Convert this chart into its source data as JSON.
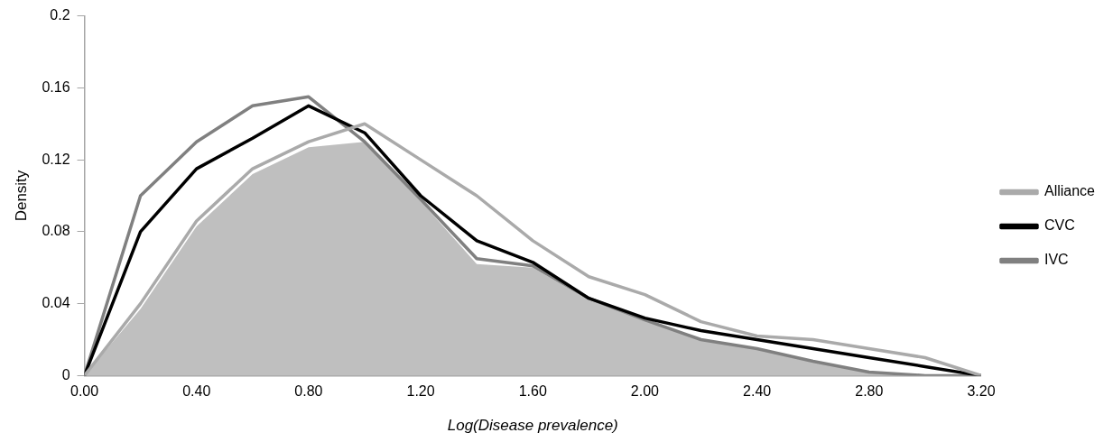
{
  "chart_data": {
    "type": "line",
    "xlabel": "Log(Disease prevalence)",
    "ylabel": "Density",
    "x": [
      0,
      0.2,
      0.4,
      0.6,
      0.8,
      1.0,
      1.2,
      1.4,
      1.6,
      1.8,
      2.0,
      2.2,
      2.4,
      2.6,
      2.8,
      3.0,
      3.2
    ],
    "series": [
      {
        "type": "area",
        "color": "#bfbfbf",
        "values": [
          0,
          0.037,
          0.083,
          0.112,
          0.127,
          0.13,
          0.097,
          0.062,
          0.06,
          0.042,
          0.031,
          0.02,
          0.015,
          0.008,
          0.002,
          0,
          0
        ]
      },
      {
        "name": "Alliance",
        "color": "#aaaaaa",
        "values": [
          0,
          0.04,
          0.086,
          0.115,
          0.13,
          0.14,
          0.12,
          0.1,
          0.075,
          0.055,
          0.045,
          0.03,
          0.022,
          0.02,
          0.015,
          0.01,
          0
        ]
      },
      {
        "name": "CVC",
        "color": "#000000",
        "values": [
          0,
          0.08,
          0.115,
          0.132,
          0.15,
          0.135,
          0.1,
          0.075,
          0.063,
          0.043,
          0.032,
          0.025,
          0.02,
          0.015,
          0.01,
          0.005,
          0
        ]
      },
      {
        "name": "IVC",
        "color": "#808080",
        "values": [
          0,
          0.1,
          0.13,
          0.15,
          0.155,
          0.13,
          0.098,
          0.065,
          0.061,
          0.043,
          0.031,
          0.02,
          0.015,
          0.008,
          0.002,
          0,
          0
        ]
      }
    ],
    "xlim": [
      0,
      3.2
    ],
    "ylim": [
      0,
      0.2
    ],
    "xticks": [
      {
        "value": 0,
        "label": "0.00"
      },
      {
        "value": 0.4,
        "label": "0.40"
      },
      {
        "value": 0.8,
        "label": "0.80"
      },
      {
        "value": 1.2,
        "label": "1.20"
      },
      {
        "value": 1.6,
        "label": "1.60"
      },
      {
        "value": 2.0,
        "label": "2.00"
      },
      {
        "value": 2.4,
        "label": "2.40"
      },
      {
        "value": 2.8,
        "label": "2.80"
      },
      {
        "value": 3.2,
        "label": "3.20"
      }
    ],
    "yticks": [
      0,
      0.04,
      0.08,
      0.12,
      0.16,
      0.2
    ],
    "grid": false,
    "legend": "right",
    "marker": "none",
    "line_style": "solid"
  }
}
